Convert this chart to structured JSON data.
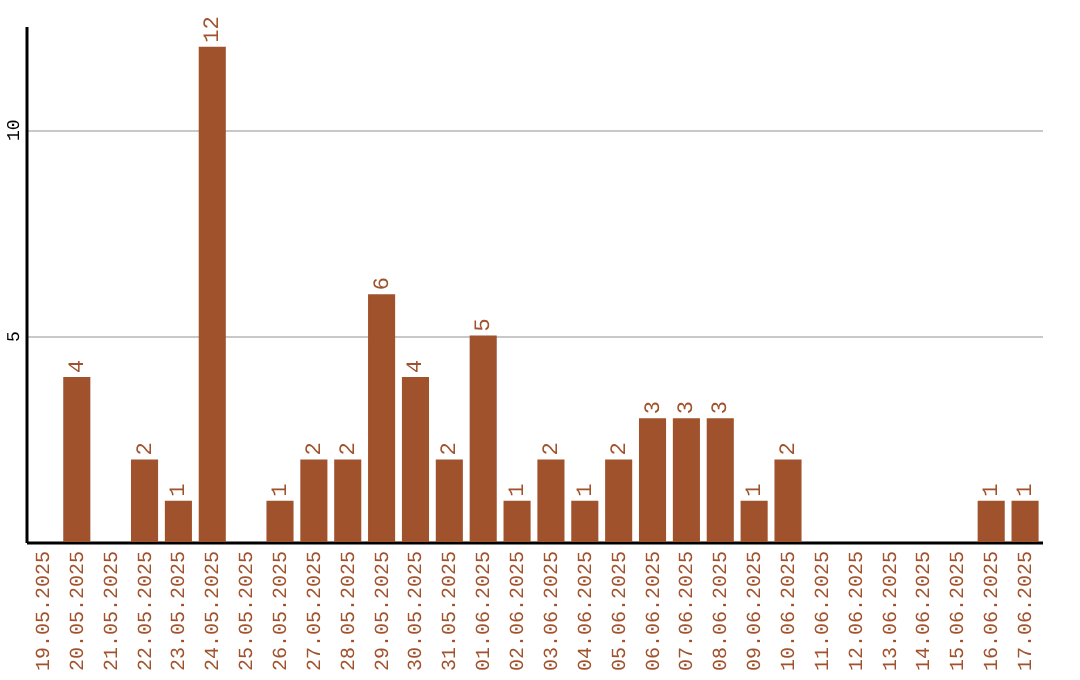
{
  "chart_data": {
    "type": "bar",
    "categories": [
      "19.05.2025",
      "20.05.2025",
      "21.05.2025",
      "22.05.2025",
      "23.05.2025",
      "24.05.2025",
      "25.05.2025",
      "26.05.2025",
      "27.05.2025",
      "28.05.2025",
      "29.05.2025",
      "30.05.2025",
      "31.05.2025",
      "01.06.2025",
      "02.06.2025",
      "03.06.2025",
      "04.06.2025",
      "05.06.2025",
      "06.06.2025",
      "07.06.2025",
      "08.06.2025",
      "09.06.2025",
      "10.06.2025",
      "11.06.2025",
      "12.06.2025",
      "13.06.2025",
      "14.06.2025",
      "15.06.2025",
      "16.06.2025",
      "17.06.2025"
    ],
    "values": [
      null,
      4,
      null,
      2,
      1,
      12,
      null,
      1,
      2,
      2,
      6,
      4,
      2,
      5,
      1,
      2,
      1,
      2,
      3,
      3,
      3,
      1,
      2,
      null,
      null,
      null,
      null,
      null,
      1,
      1
    ],
    "color": "#a0522d",
    "ylim": [
      0,
      12.5
    ],
    "yticks": [
      5,
      10
    ],
    "grid": "y",
    "data_labels": true
  }
}
